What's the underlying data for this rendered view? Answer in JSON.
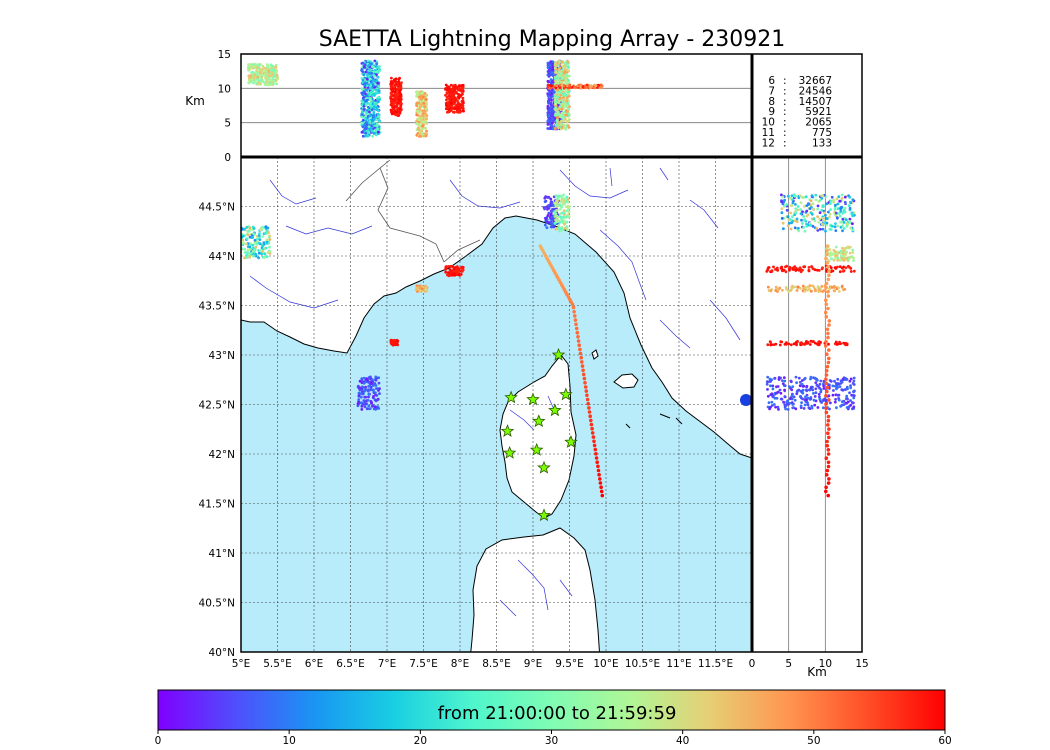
{
  "title": "SAETTA Lightning Mapping Array - 230921",
  "colors": {
    "sea": "#b8ecfb",
    "land": "#ffffff",
    "river": "#3333dd",
    "border": "#555555",
    "track_highlight": "#ff0000",
    "colormap": [
      "#7f00ff",
      "#4f4ffc",
      "#1996f3",
      "#19cfe2",
      "#4ff6cc",
      "#7ffcb4",
      "#b0f696",
      "#e6cf75",
      "#ff9650",
      "#ff4f27",
      "#ff0000"
    ]
  },
  "icons": {
    "station": "star-icon"
  },
  "chart_data": [
    {
      "panel": "altitude-vs-longitude",
      "type": "scatter",
      "ylabel": "Km",
      "ylim": [
        0,
        15
      ],
      "y_ticks": [
        "0",
        "5",
        "10",
        "15"
      ],
      "xlim": [
        5,
        12
      ],
      "grid_lines_y": [
        5,
        10
      ],
      "clusters": [
        {
          "lon": [
            5.1,
            5.5
          ],
          "alt": [
            10.5,
            13.5
          ],
          "color_min": 28,
          "color_max": 45
        },
        {
          "lon": [
            6.65,
            6.9
          ],
          "alt": [
            3.0,
            14.0
          ],
          "color_min": 2,
          "color_max": 30
        },
        {
          "lon": [
            7.05,
            7.2
          ],
          "alt": [
            6.0,
            11.5
          ],
          "color_min": 57,
          "color_max": 60
        },
        {
          "lon": [
            7.4,
            7.55
          ],
          "alt": [
            3.0,
            9.5
          ],
          "color_min": 35,
          "color_max": 50
        },
        {
          "lon": [
            7.8,
            8.05
          ],
          "alt": [
            6.5,
            10.5
          ],
          "color_min": 57,
          "color_max": 60
        },
        {
          "lon": [
            9.2,
            9.4
          ],
          "alt": [
            4.0,
            14.0
          ],
          "color_min": 2,
          "color_max": 10
        },
        {
          "lon": [
            9.3,
            9.5
          ],
          "alt": [
            4.0,
            14.0
          ],
          "color_min": 25,
          "color_max": 48
        },
        {
          "lon": [
            9.2,
            9.95
          ],
          "alt": [
            10.0,
            10.5
          ],
          "color_min": 45,
          "color_max": 60
        }
      ]
    },
    {
      "panel": "latitude-vs-longitude-map",
      "type": "scatter",
      "xlim": [
        5,
        12
      ],
      "ylim": [
        40,
        45
      ],
      "x_ticks": [
        "5°E",
        "5.5°E",
        "6°E",
        "6.5°E",
        "7°E",
        "7.5°E",
        "8°E",
        "8.5°E",
        "9°E",
        "9.5°E",
        "10°E",
        "10.5°E",
        "11°E",
        "11.5°E"
      ],
      "y_ticks": [
        "40°N",
        "40.5°N",
        "41°N",
        "41.5°N",
        "42°N",
        "42.5°N",
        "43°N",
        "43.5°N",
        "44°N",
        "44.5°N"
      ],
      "stations": [
        {
          "lon": 9.35,
          "lat": 43.0
        },
        {
          "lon": 8.7,
          "lat": 42.57
        },
        {
          "lon": 9.0,
          "lat": 42.55
        },
        {
          "lon": 9.45,
          "lat": 42.6
        },
        {
          "lon": 9.3,
          "lat": 42.44
        },
        {
          "lon": 9.08,
          "lat": 42.33
        },
        {
          "lon": 8.65,
          "lat": 42.23
        },
        {
          "lon": 9.52,
          "lat": 42.12
        },
        {
          "lon": 8.68,
          "lat": 42.01
        },
        {
          "lon": 9.05,
          "lat": 42.04
        },
        {
          "lon": 9.15,
          "lat": 41.86
        },
        {
          "lon": 9.15,
          "lat": 41.38
        }
      ],
      "clusters": [
        {
          "lon": [
            5.0,
            5.4
          ],
          "lat": [
            43.98,
            44.3
          ],
          "color_min": 10,
          "color_max": 45
        },
        {
          "lon": [
            6.6,
            6.9
          ],
          "lat": [
            42.45,
            42.78
          ],
          "color_min": 2,
          "color_max": 10
        },
        {
          "lon": [
            7.05,
            7.15
          ],
          "lat": [
            43.1,
            43.15
          ],
          "color_min": 58,
          "color_max": 60
        },
        {
          "lon": [
            7.4,
            7.55
          ],
          "lat": [
            43.64,
            43.7
          ],
          "color_min": 40,
          "color_max": 50
        },
        {
          "lon": [
            7.8,
            8.05
          ],
          "lat": [
            43.8,
            43.9
          ],
          "color_min": 57,
          "color_max": 60
        },
        {
          "lon": [
            9.15,
            9.35
          ],
          "lat": [
            44.28,
            44.6
          ],
          "color_min": 2,
          "color_max": 10
        },
        {
          "lon": [
            9.3,
            9.5
          ],
          "lat": [
            44.25,
            44.62
          ],
          "color_min": 25,
          "color_max": 45
        }
      ],
      "track": {
        "from": {
          "lon": 9.1,
          "lat": 44.1
        },
        "mid": {
          "lon": 9.55,
          "lat": 43.5
        },
        "to": {
          "lon": 9.95,
          "lat": 41.58
        },
        "color_min": 45,
        "color_max": 60
      }
    },
    {
      "panel": "latitude-vs-altitude",
      "type": "scatter",
      "xlabel": "Km",
      "xlim": [
        0,
        15
      ],
      "x_ticks": [
        "0",
        "5",
        "10",
        "15"
      ],
      "grid_lines_x": [
        5,
        10
      ],
      "clusters": [
        {
          "alt": [
            4.0,
            14.0
          ],
          "lat": [
            44.25,
            44.62
          ],
          "color_min": 2,
          "color_max": 45
        },
        {
          "alt": [
            10.0,
            14.0
          ],
          "lat": [
            43.95,
            44.1
          ],
          "color_min": 30,
          "color_max": 45
        },
        {
          "alt": [
            2.0,
            14.0
          ],
          "lat": [
            43.84,
            43.9
          ],
          "color_min": 57,
          "color_max": 60
        },
        {
          "alt": [
            2.0,
            13.0
          ],
          "lat": [
            43.64,
            43.7
          ],
          "color_min": 40,
          "color_max": 50
        },
        {
          "alt": [
            2.0,
            13.0
          ],
          "lat": [
            43.1,
            43.14
          ],
          "color_min": 58,
          "color_max": 60
        },
        {
          "alt": [
            2.0,
            14.0
          ],
          "lat": [
            42.45,
            42.78
          ],
          "color_min": 2,
          "color_max": 10
        }
      ],
      "track": {
        "alt": 10.3,
        "lat_top": 44.1,
        "lat_bottom": 41.58,
        "color_min": 45,
        "color_max": 60
      }
    },
    {
      "panel": "colorbar",
      "type": "heatmap",
      "range": [
        0,
        60
      ],
      "ticks": [
        "0",
        "10",
        "20",
        "30",
        "40",
        "50",
        "60"
      ],
      "title": "from 21:00:00 to 21:59:59"
    },
    {
      "panel": "station-count-table",
      "type": "table",
      "rows": [
        {
          "stations": "6",
          "count": "32667",
          "highlight": false
        },
        {
          "stations": "7",
          "count": "24546",
          "highlight": true
        },
        {
          "stations": "8",
          "count": "14507",
          "highlight": false
        },
        {
          "stations": "9",
          "count": "5921",
          "highlight": false
        },
        {
          "stations": "10",
          "count": "2065",
          "highlight": false
        },
        {
          "stations": "11",
          "count": "775",
          "highlight": false
        },
        {
          "stations": "12",
          "count": "133",
          "highlight": false
        }
      ]
    }
  ]
}
